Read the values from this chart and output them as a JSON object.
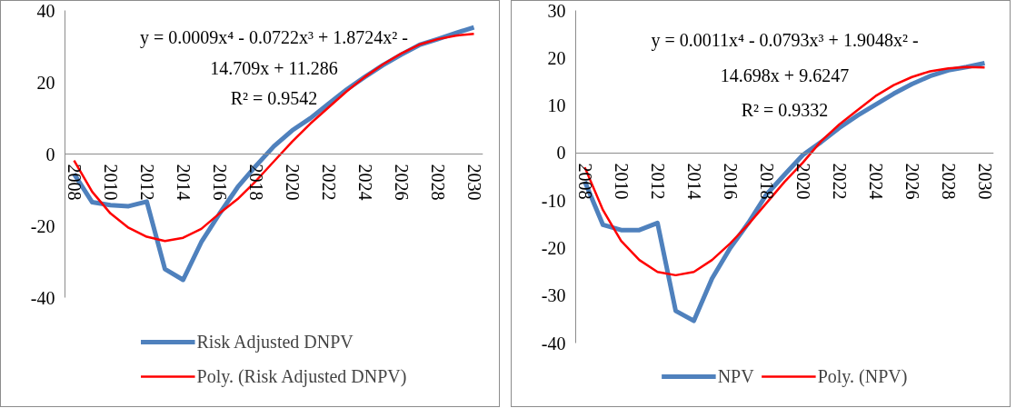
{
  "chart_data": [
    {
      "type": "line",
      "x": [
        2008,
        2009,
        2010,
        2011,
        2012,
        2013,
        2014,
        2015,
        2016,
        2017,
        2018,
        2019,
        2020,
        2021,
        2022,
        2023,
        2024,
        2025,
        2026,
        2027,
        2028,
        2029,
        2030
      ],
      "xlim": [
        2007.5,
        2030.5
      ],
      "xticks": [
        2008,
        2010,
        2012,
        2014,
        2016,
        2018,
        2020,
        2022,
        2024,
        2026,
        2028,
        2030
      ],
      "ylim": [
        -40,
        40
      ],
      "yticks": [
        -40,
        -20,
        0,
        20,
        40
      ],
      "legend": "bottom",
      "annotations": [
        "y = 0.0009x⁴ - 0.0722x³ + 1.8724x² - 14.709x + 11.286",
        "R² = 0.9542"
      ],
      "series": [
        {
          "name": "Risk Adjusted DNPV",
          "color": "#4f81bd",
          "values": [
            -5.5,
            -13.4,
            -14.2,
            -14.5,
            -13.2,
            -32,
            -35,
            -24.5,
            -16.6,
            -9.2,
            -3.3,
            2.2,
            6.6,
            10,
            14,
            18,
            21.5,
            24.8,
            27.7,
            30.4,
            32,
            33.7,
            35.3
          ]
        },
        {
          "name": "Poly. (Risk Adjusted DNPV)",
          "color": "#ff0000",
          "values": [
            -1.8,
            -10.5,
            -16.5,
            -20.5,
            -23,
            -24.2,
            -23.3,
            -20.8,
            -16.5,
            -12.5,
            -7.5,
            -2,
            3.5,
            8.5,
            13,
            17.5,
            21.5,
            25,
            28,
            30.5,
            32,
            33,
            33.5
          ]
        }
      ]
    },
    {
      "type": "line",
      "x": [
        2008,
        2009,
        2010,
        2011,
        2012,
        2013,
        2014,
        2015,
        2016,
        2017,
        2018,
        2019,
        2020,
        2021,
        2022,
        2023,
        2024,
        2025,
        2026,
        2027,
        2028,
        2029,
        2030
      ],
      "xlim": [
        2007.5,
        2030.5
      ],
      "xticks": [
        2008,
        2010,
        2012,
        2014,
        2016,
        2018,
        2020,
        2022,
        2024,
        2026,
        2028,
        2030
      ],
      "ylim": [
        -40,
        30
      ],
      "yticks": [
        -40,
        -30,
        -20,
        -10,
        0,
        10,
        20,
        30
      ],
      "legend": "bottom",
      "annotations": [
        "y = 0.0011x⁴ - 0.0793x³ + 1.9048x² - 14.698x + 9.6247",
        "R² = 0.9332"
      ],
      "series": [
        {
          "name": "NPV",
          "color": "#4f81bd",
          "values": [
            -6,
            -15.1,
            -16.2,
            -16.2,
            -14.7,
            -33.2,
            -35.3,
            -26.4,
            -20,
            -14.7,
            -8.7,
            -4.5,
            -0.4,
            2.3,
            5.3,
            7.9,
            10.2,
            12.5,
            14.5,
            16.2,
            17.4,
            18.1,
            18.9
          ]
        },
        {
          "name": "Poly. (NPV)",
          "color": "#ff0000",
          "values": [
            -3,
            -12,
            -18.5,
            -22.5,
            -25,
            -25.7,
            -25,
            -22.5,
            -19,
            -15,
            -10.5,
            -6,
            -2,
            2.5,
            6,
            9,
            12,
            14.3,
            16,
            17.2,
            17.8,
            18.1,
            18
          ]
        }
      ]
    }
  ]
}
